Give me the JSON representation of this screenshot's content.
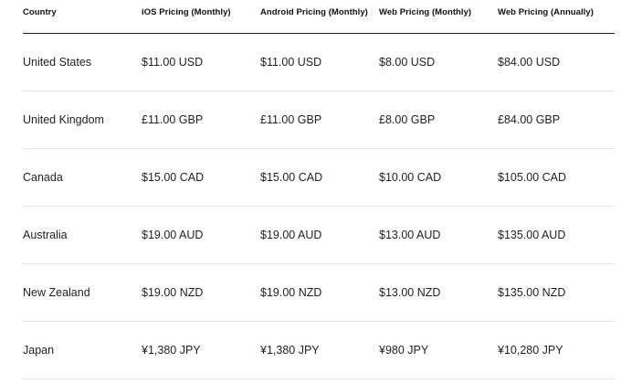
{
  "table": {
    "headers": [
      "Country",
      "iOS Pricing (Monthly)",
      "Android Pricing (Monthly)",
      "Web Pricing (Monthly)",
      "Web Pricing (Annually)"
    ],
    "rows": [
      [
        "United States",
        "$11.00 USD",
        "$11.00 USD",
        "$8.00 USD",
        "$84.00 USD"
      ],
      [
        "United Kingdom",
        "£11.00 GBP",
        "£11.00 GBP",
        "£8.00 GBP",
        "£84.00 GBP"
      ],
      [
        "Canada",
        "$15.00 CAD",
        "$15.00 CAD",
        "$10.00 CAD",
        "$105.00 CAD"
      ],
      [
        "Australia",
        "$19.00 AUD",
        "$19.00 AUD",
        "$13.00 AUD",
        "$135.00 AUD"
      ],
      [
        "New Zealand",
        "$19.00 NZD",
        "$19.00 NZD",
        "$13.00 NZD",
        "$135.00 NZD"
      ],
      [
        "Japan",
        "¥1,380 JPY",
        "¥1,380 JPY",
        "¥980 JPY",
        "¥10,280 JPY"
      ]
    ]
  }
}
